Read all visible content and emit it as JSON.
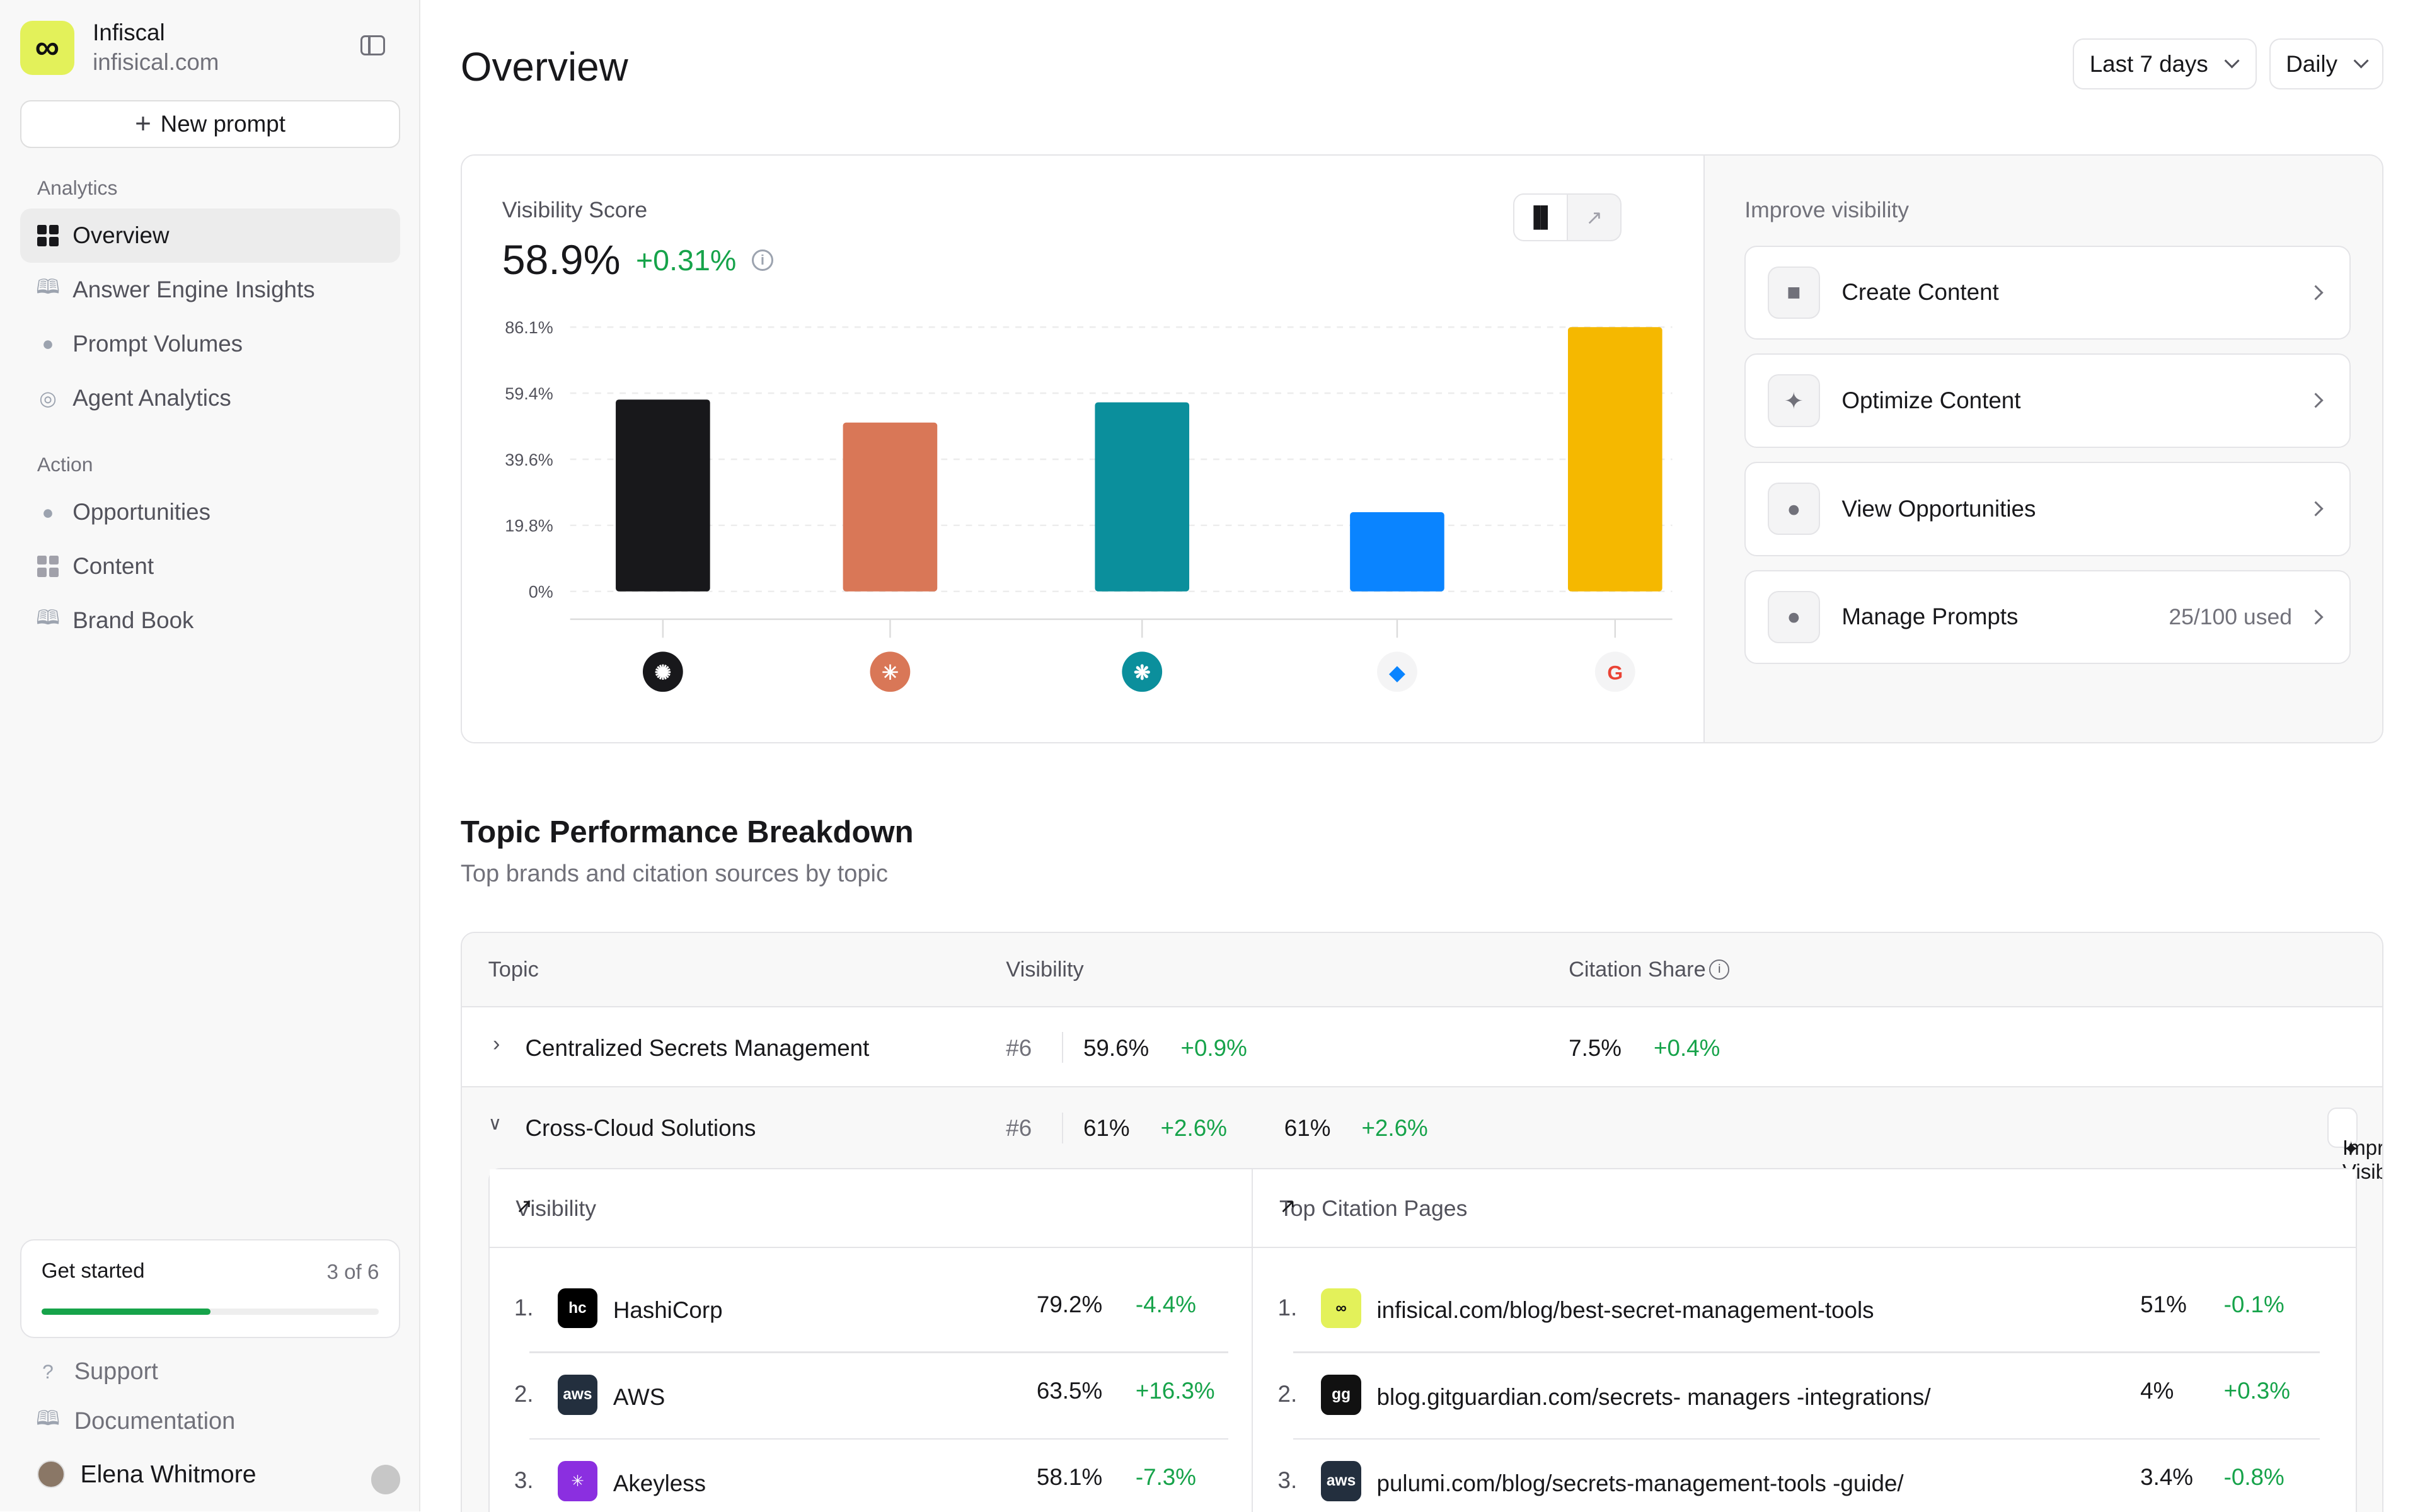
{
  "workspace": {
    "name": "Infiscal",
    "domain": "infisical.com",
    "logo_glyph": "∞"
  },
  "sidebar": {
    "new_prompt": "New prompt",
    "section_analytics": "Analytics",
    "analytics_items": [
      {
        "label": "Overview",
        "icon": "grid-icon"
      },
      {
        "label": "Answer Engine Insights",
        "icon": "book-icon"
      },
      {
        "label": "Prompt Volumes",
        "icon": "chat-icon"
      },
      {
        "label": "Agent Analytics",
        "icon": "globe-icon"
      }
    ],
    "section_action": "Action",
    "action_items": [
      {
        "label": "Opportunities",
        "icon": "bulb-icon"
      },
      {
        "label": "Content",
        "icon": "grid-icon"
      },
      {
        "label": "Brand Book",
        "icon": "book-icon"
      }
    ],
    "get_started": {
      "label": "Get started",
      "count": "3 of 6",
      "progress": 0.5
    },
    "support": "Support",
    "documentation": "Documentation",
    "user": "Elena Whitmore"
  },
  "header": {
    "title": "Overview",
    "range": "Last 7 days",
    "interval": "Daily"
  },
  "visibility": {
    "label": "Visibility Score",
    "value": "58.9%",
    "change": "+0.31%",
    "info": "i"
  },
  "chart_data": {
    "type": "bar",
    "categories": [
      "ChatGPT",
      "Claude",
      "Perplexity",
      "Copilot",
      "Google"
    ],
    "values": [
      62.5,
      55.0,
      61.6,
      25.8,
      86.1
    ],
    "colors": [
      "#18181b",
      "#d97757",
      "#0b8f9c",
      "#0a84ff",
      "#f5b800"
    ],
    "yticks": [
      "86.1%",
      "59.4%",
      "39.6%",
      "19.8%",
      "0%"
    ],
    "ylim": [
      0,
      86.1
    ]
  },
  "improve": {
    "title": "Improve visibility",
    "items": [
      {
        "label": "Create Content",
        "icon": "document-icon",
        "meta": ""
      },
      {
        "label": "Optimize Content",
        "icon": "sparkle-off-icon",
        "meta": ""
      },
      {
        "label": "View Opportunities",
        "icon": "bulb-icon",
        "meta": ""
      },
      {
        "label": "Manage Prompts",
        "icon": "chat-icon",
        "meta": "25/100 used"
      }
    ]
  },
  "topics": {
    "title": "Topic Performance Breakdown",
    "subtitle": "Top brands and citation sources by topic",
    "headers": {
      "topic": "Topic",
      "visibility": "Visibility",
      "citation": "Citation Share"
    },
    "rows": [
      {
        "name": "Centralized Secrets Management",
        "rank": "#6",
        "vis": "59.6%",
        "vis_chg": "+0.9%",
        "cit": "7.5%",
        "cit_chg": "+0.4%"
      },
      {
        "name": "Cross-Cloud Solutions",
        "rank": "#6",
        "vis": "61%",
        "vis_chg": "+2.6%",
        "cit": "61%",
        "cit_chg": "+2.6%"
      }
    ],
    "improve_button": "Improve Visibility",
    "panel_visibility": {
      "title": "Visibility",
      "rows": [
        {
          "n": "1.",
          "name": "HashiCorp",
          "pct": "79.2%",
          "chg": "-4.4%",
          "logo": "hc",
          "color": "#000000"
        },
        {
          "n": "2.",
          "name": "AWS",
          "pct": "63.5%",
          "chg": "+16.3%",
          "logo": "aws",
          "color": "#232f3e"
        },
        {
          "n": "3.",
          "name": "Akeyless",
          "pct": "58.1%",
          "chg": "-7.3%",
          "logo": "✳",
          "color": "#8b2fe0"
        }
      ]
    },
    "panel_citations": {
      "title": "Top Citation Pages",
      "rows": [
        {
          "n": "1.",
          "name": "infisical.com/blog/best-secret-management-tools",
          "pct": "51%",
          "chg": "-0.1%",
          "logo": "∞",
          "color": "#e3f15a"
        },
        {
          "n": "2.",
          "name": "blog.gitguardian.com/secrets- managers -integrations/",
          "pct": "4%",
          "chg": "+0.3%",
          "logo": "gg",
          "color": "#111111"
        },
        {
          "n": "3.",
          "name": "pulumi.com/blog/secrets-management-tools -guide/",
          "pct": "3.4%",
          "chg": "-0.8%",
          "logo": "aws",
          "color": "#232f3e"
        }
      ]
    }
  }
}
